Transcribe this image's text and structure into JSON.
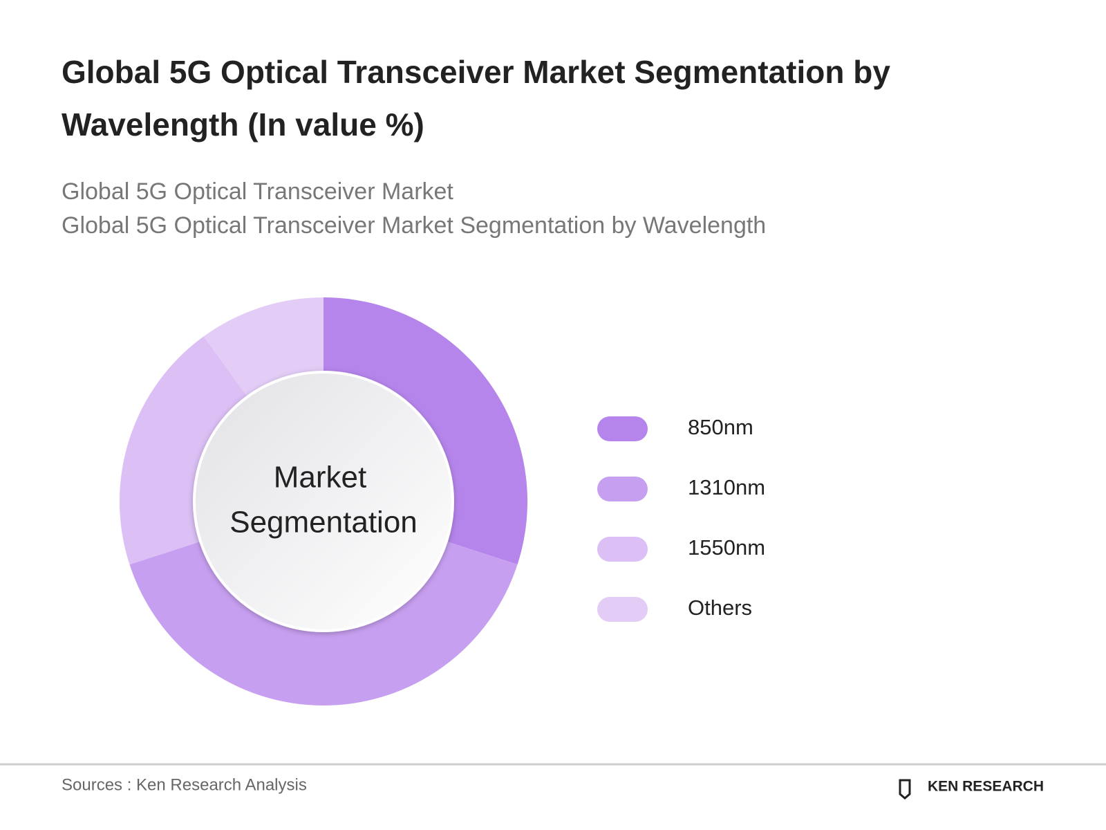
{
  "chart_data": {
    "type": "donut",
    "title": "Global 5G Optical Transceiver Market Segmentation by Wavelength (In value %)",
    "subtitle": [
      "Global 5G Optical Transceiver Market",
      "Global 5G Optical Transceiver Market Segmentation by Wavelength"
    ],
    "center_label": [
      "Market",
      "Segmentation"
    ],
    "categories": [
      "850nm",
      "1310nm",
      "1550nm",
      "Others"
    ],
    "values": [
      30,
      40,
      20,
      10
    ],
    "colors": [
      "#b585eb",
      "#c79ff0",
      "#dbbff5",
      "#e3cdf7"
    ],
    "legend": "right"
  },
  "footer": {
    "source": "Sources : Ken Research Analysis",
    "logo": "KEN RESEARCH"
  }
}
